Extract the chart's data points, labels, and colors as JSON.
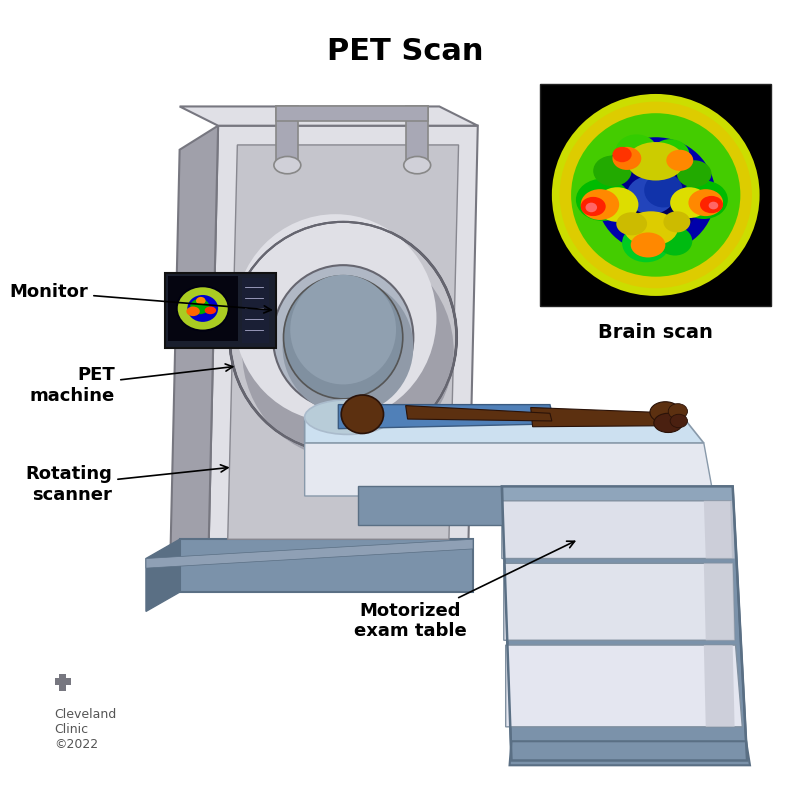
{
  "title": "PET Scan",
  "title_fontsize": 22,
  "title_fontweight": "bold",
  "background_color": "#ffffff",
  "labels": {
    "monitor": "Monitor",
    "pet_machine": "PET\nmachine",
    "rotating_scanner": "Rotating\nscanner",
    "motorized_table": "Motorized\nexam table",
    "brain_scan": "Brain scan"
  },
  "label_fontsize": 13,
  "label_fontweight": "bold",
  "copyright_text": "Cleveland\nClinic\n©2022",
  "copyright_fontsize": 9,
  "machine_gray": "#c5c5cc",
  "machine_light": "#e0e0e6",
  "machine_dark": "#a0a0aa",
  "machine_shadow": "#888895",
  "blue_gray": "#7b92aa",
  "blue_gray_dark": "#5a6f84",
  "table_top_blue": "#cce0f0",
  "table_white": "#e8eaf0",
  "table_white2": "#d8dae8",
  "patient_skin": "#5c3010",
  "patient_gown": "#5080b8",
  "pillow_color": "#b8ccd8",
  "monitor_dark": "#1a1f2e",
  "frame_gray": "#a8a8b5"
}
